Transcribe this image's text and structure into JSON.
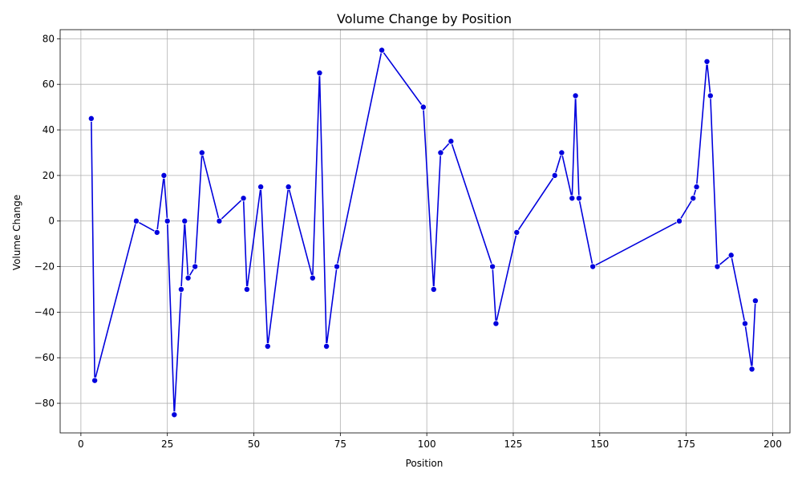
{
  "chart_data": {
    "type": "line",
    "title": "Volume Change by Position",
    "xlabel": "Position",
    "ylabel": "Volume Change",
    "xlim": [
      -6,
      205
    ],
    "ylim": [
      -93,
      84
    ],
    "xticks": [
      0,
      25,
      50,
      75,
      100,
      125,
      150,
      175,
      200
    ],
    "xtick_labels": [
      "0",
      "25",
      "50",
      "75",
      "100",
      "125",
      "150",
      "175",
      "200"
    ],
    "yticks": [
      -80,
      -60,
      -40,
      -20,
      0,
      20,
      40,
      60,
      80
    ],
    "ytick_labels": [
      "−80",
      "−60",
      "−40",
      "−20",
      "0",
      "20",
      "40",
      "60",
      "80"
    ],
    "grid": true,
    "legend": "none",
    "colors": {
      "line": "#0000dd",
      "marker": "#0000dd",
      "marker_edge": "#ffffff",
      "grid": "#b0b0b0",
      "axis": "#000000"
    },
    "series": [
      {
        "x": [
          3,
          4,
          16,
          22,
          24,
          25,
          27,
          29,
          30,
          31,
          33,
          35,
          40,
          47,
          48,
          52,
          54,
          60,
          67,
          69,
          71,
          74,
          87,
          99,
          102,
          104,
          107,
          119,
          120,
          126,
          137,
          139,
          142,
          143,
          144,
          148,
          173,
          177,
          178,
          181,
          182,
          184,
          188,
          192,
          194,
          195
        ],
        "y": [
          45,
          -70,
          0,
          -5,
          20,
          0,
          -85,
          -30,
          0,
          -25,
          -20,
          30,
          0,
          10,
          -30,
          15,
          -55,
          15,
          -25,
          65,
          -55,
          -20,
          75,
          50,
          -30,
          30,
          35,
          -20,
          -45,
          -5,
          20,
          30,
          10,
          55,
          10,
          -20,
          0,
          10,
          15,
          70,
          55,
          -20,
          -15,
          -45,
          -65,
          -35
        ]
      }
    ]
  }
}
